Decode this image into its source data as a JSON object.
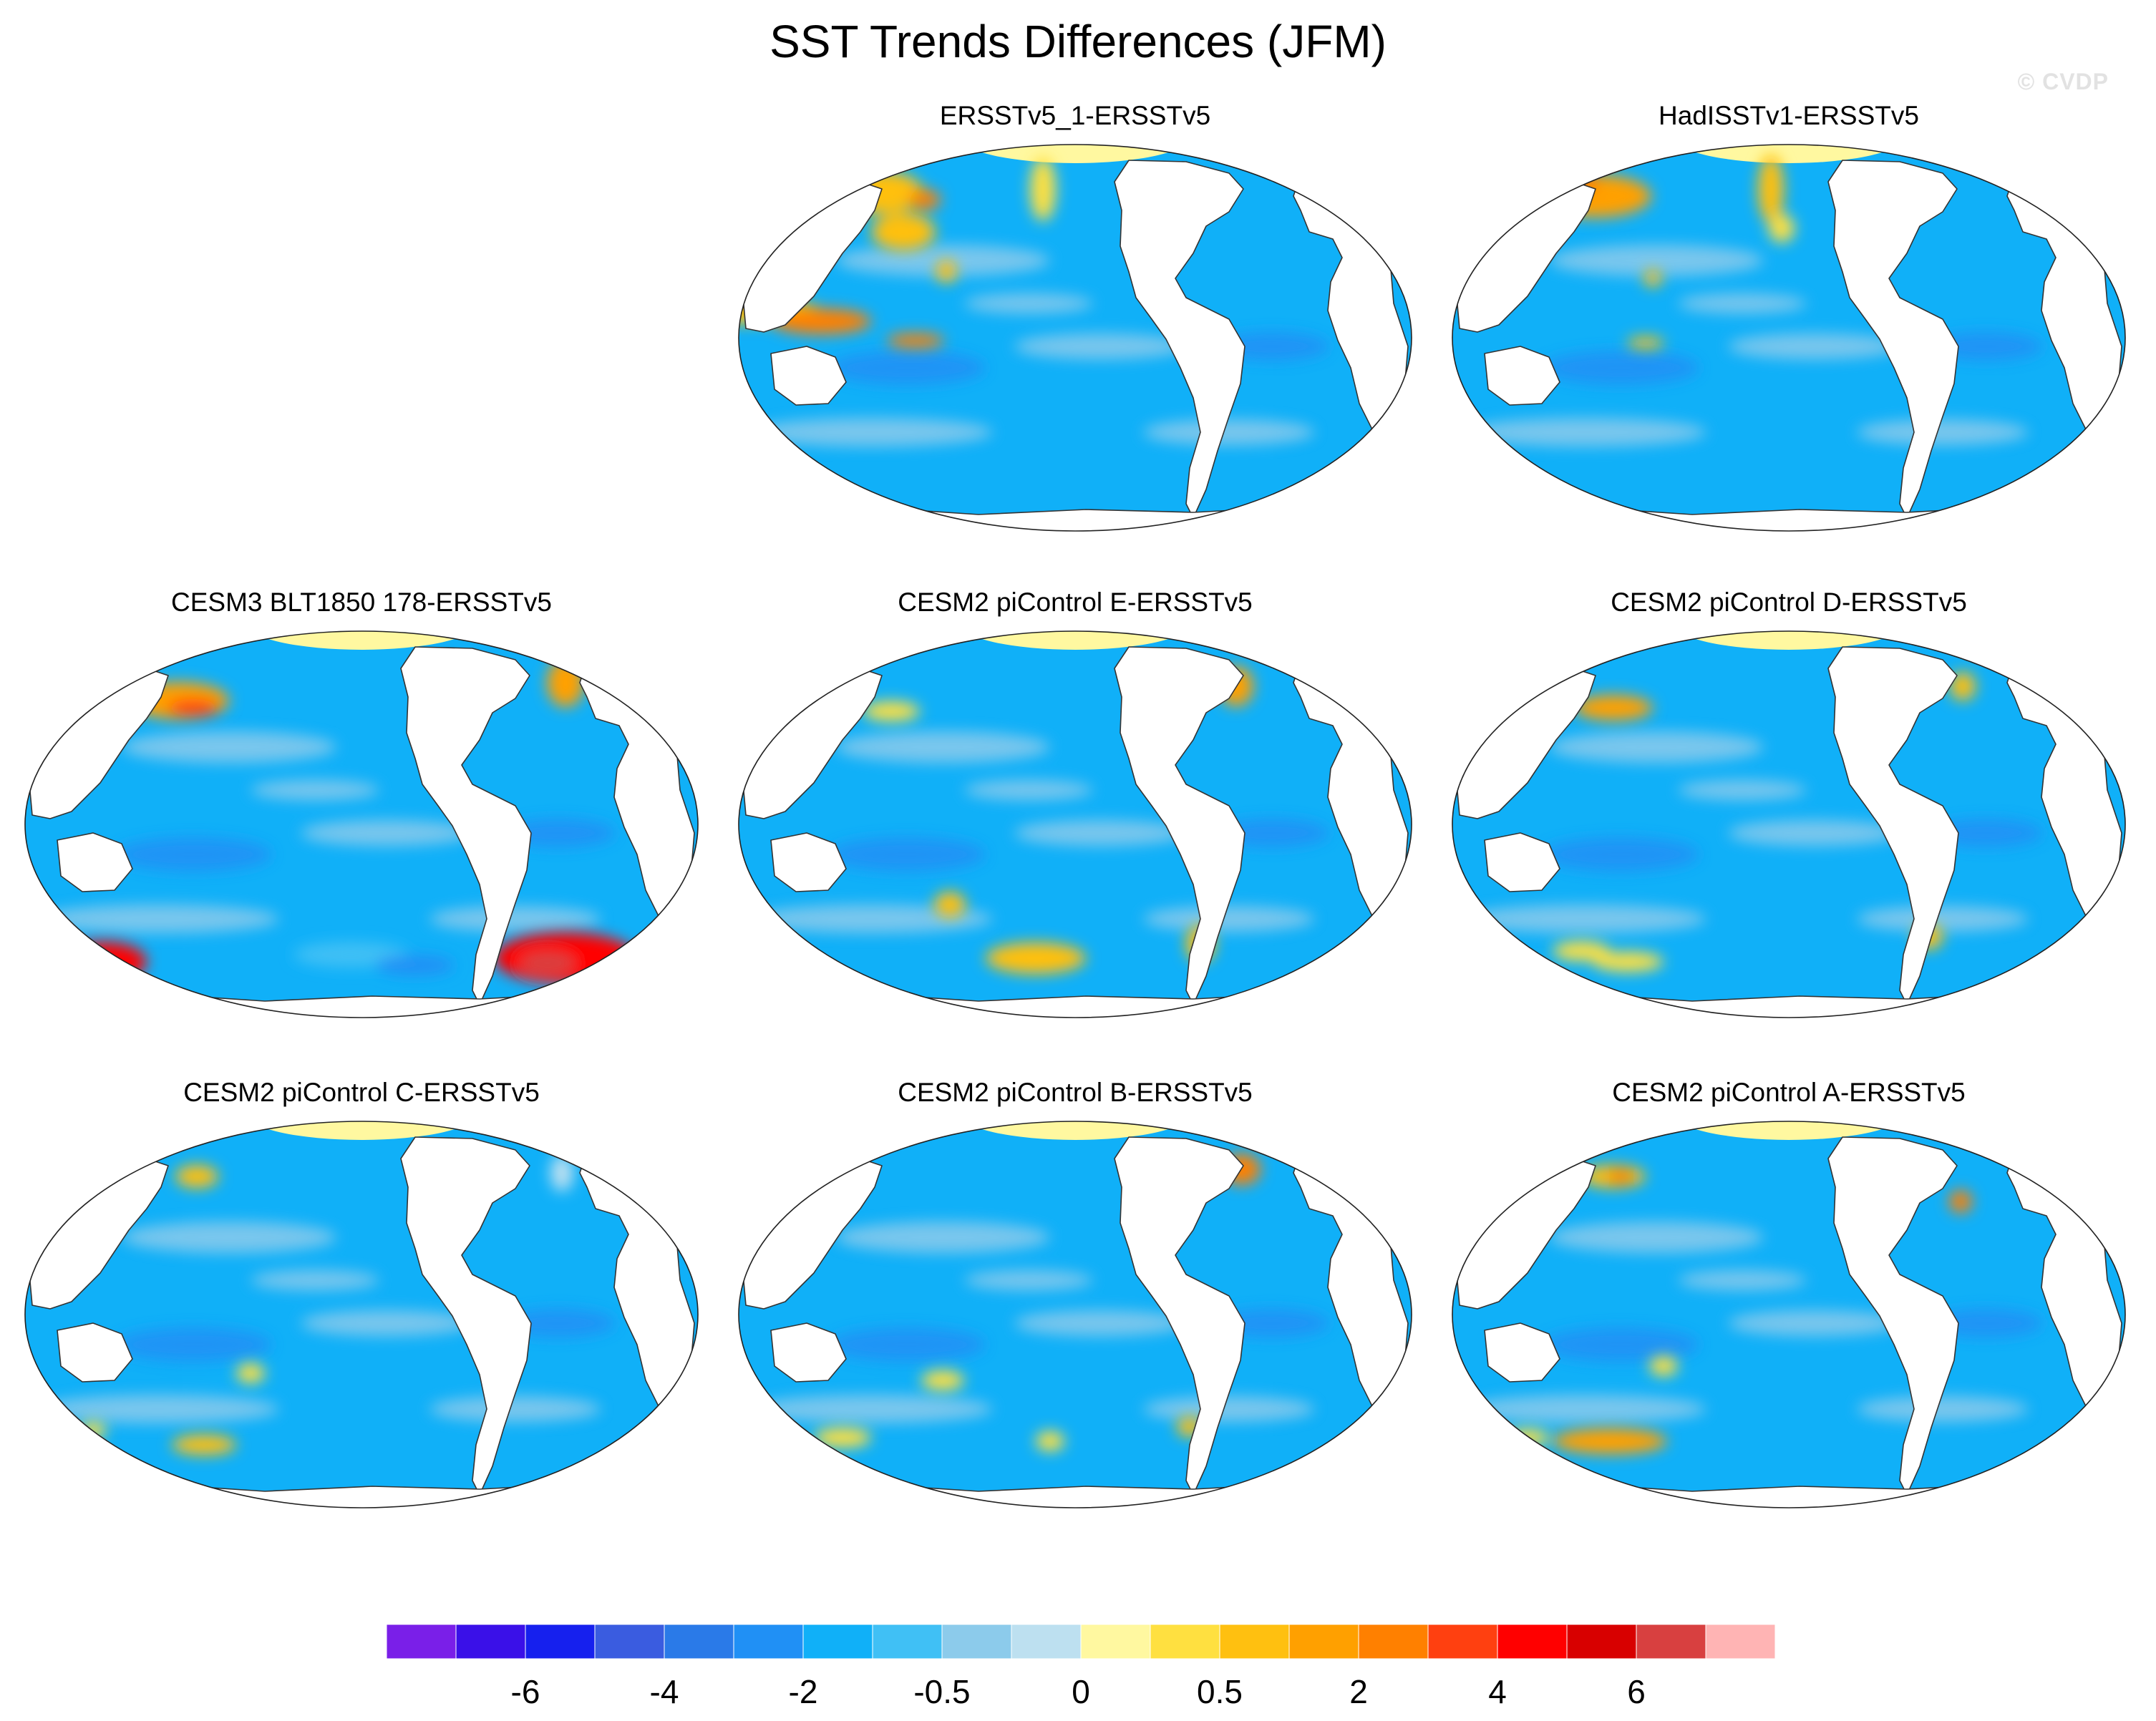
{
  "title": "SST Trends Differences (JFM)",
  "watermark": "© CVDP",
  "panels": [
    {
      "label": "ERSSTv5_1-ERSSTv5",
      "row": 0,
      "col": 1,
      "blobs": [
        [
          215,
          85,
          58,
          30,
          12
        ],
        [
          245,
          140,
          45,
          26,
          12
        ],
        [
          440,
          80,
          18,
          45,
          11
        ],
        [
          275,
          95,
          22,
          14,
          14
        ],
        [
          20,
          250,
          110,
          18,
          12
        ],
        [
          130,
          265,
          70,
          18,
          14
        ],
        [
          305,
          195,
          14,
          16,
          12
        ],
        [
          262,
          292,
          40,
          10,
          14
        ]
      ]
    },
    {
      "label": "HadISSTv1-ERSSTv5",
      "row": 0,
      "col": 2,
      "blobs": [
        [
          215,
          90,
          78,
          30,
          13
        ],
        [
          190,
          70,
          28,
          18,
          14
        ],
        [
          460,
          80,
          18,
          48,
          12
        ],
        [
          475,
          135,
          18,
          20,
          11
        ],
        [
          295,
          205,
          12,
          12,
          12
        ],
        [
          285,
          295,
          26,
          8,
          12
        ]
      ]
    },
    {
      "label": "CESM3 BLT1850 178-ERSSTv5",
      "row": 1,
      "col": 0,
      "blobs": [
        [
          230,
          115,
          70,
          26,
          13
        ],
        [
          250,
          125,
          36,
          12,
          15
        ],
        [
          770,
          90,
          26,
          34,
          13
        ],
        [
          125,
          480,
          60,
          28,
          16
        ],
        [
          100,
          485,
          26,
          14,
          18
        ],
        [
          770,
          475,
          100,
          36,
          16
        ],
        [
          745,
          482,
          40,
          16,
          18
        ],
        [
          470,
          470,
          80,
          18,
          7
        ],
        [
          560,
          485,
          55,
          14,
          5
        ]
      ]
    },
    {
      "label": "CESM2 piControl E-ERSSTv5",
      "row": 1,
      "col": 1,
      "blobs": [
        [
          228,
          130,
          40,
          14,
          11
        ],
        [
          710,
          95,
          24,
          28,
          13
        ],
        [
          310,
          400,
          22,
          18,
          12
        ],
        [
          430,
          475,
          70,
          22,
          12
        ],
        [
          660,
          455,
          20,
          26,
          12
        ]
      ]
    },
    {
      "label": "CESM2 piControl D-ERSSTv5",
      "row": 1,
      "col": 2,
      "blobs": [
        [
          240,
          125,
          55,
          18,
          13
        ],
        [
          728,
          95,
          18,
          20,
          12
        ],
        [
          195,
          465,
          40,
          14,
          11
        ],
        [
          260,
          480,
          50,
          14,
          11
        ],
        [
          680,
          445,
          20,
          18,
          12
        ]
      ]
    },
    {
      "label": "CESM2 piControl C-ERSSTv5",
      "row": 2,
      "col": 0,
      "blobs": [
        [
          255,
          95,
          30,
          16,
          12
        ],
        [
          765,
          90,
          16,
          26,
          9
        ],
        [
          330,
          370,
          20,
          14,
          11
        ],
        [
          265,
          470,
          45,
          14,
          12
        ],
        [
          110,
          450,
          18,
          12,
          11
        ]
      ]
    },
    {
      "label": "CESM2 piControl B-ERSSTv5",
      "row": 2,
      "col": 1,
      "blobs": [
        [
          718,
          85,
          26,
          22,
          14
        ],
        [
          618,
          120,
          20,
          10,
          8
        ],
        [
          300,
          380,
          30,
          14,
          11
        ],
        [
          160,
          460,
          40,
          14,
          11
        ],
        [
          450,
          465,
          20,
          14,
          11
        ],
        [
          645,
          445,
          18,
          14,
          12
        ]
      ]
    },
    {
      "label": "CESM2 piControl A-ERSSTv5",
      "row": 2,
      "col": 2,
      "blobs": [
        [
          240,
          95,
          45,
          16,
          12
        ],
        [
          250,
          95,
          18,
          10,
          14
        ],
        [
          725,
          130,
          16,
          16,
          14
        ],
        [
          310,
          360,
          20,
          14,
          11
        ],
        [
          235,
          465,
          80,
          18,
          13
        ],
        [
          120,
          460,
          30,
          12,
          11
        ]
      ]
    }
  ],
  "colorbar": {
    "colors": [
      "#7a1fe8",
      "#3a10e8",
      "#1620ee",
      "#3a5ce0",
      "#2a7ae8",
      "#2090f5",
      "#10b0f8",
      "#40c0f5",
      "#8ccbeb",
      "#bde0f0",
      "#fff8a0",
      "#ffe040",
      "#ffc010",
      "#ffa000",
      "#ff8000",
      "#ff4010",
      "#ff0000",
      "#d80000",
      "#d84040",
      "#ffb4b4"
    ],
    "labels": [
      {
        "text": "-6",
        "boundary": 2
      },
      {
        "text": "-4",
        "boundary": 4
      },
      {
        "text": "-2",
        "boundary": 6
      },
      {
        "text": "-0.5",
        "boundary": 8
      },
      {
        "text": "0",
        "boundary": 10
      },
      {
        "text": "0.5",
        "boundary": 12
      },
      {
        "text": "2",
        "boundary": 14
      },
      {
        "text": "4",
        "boundary": 16
      },
      {
        "text": "6",
        "boundary": 18
      }
    ]
  }
}
